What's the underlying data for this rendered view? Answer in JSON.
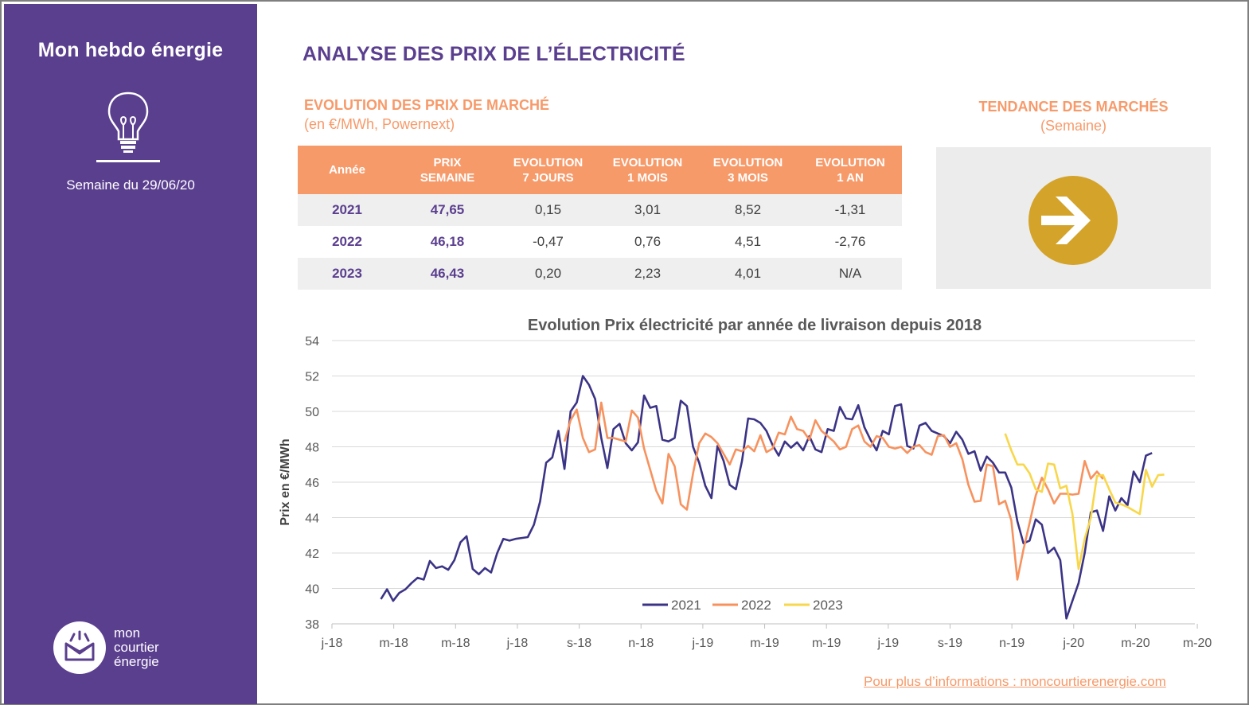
{
  "sidebar": {
    "title": "Mon hebdo énergie",
    "week": "Semaine du 29/06/20",
    "logo_lines": [
      "mon",
      "courtier",
      "énergie"
    ]
  },
  "main": {
    "title": "ANALYSE DES PRIX DE L’ÉLECTRICITÉ",
    "market_title": "EVOLUTION DES PRIX DE MARCHÉ",
    "market_subtitle": "(en €/MWh, Powernext)",
    "trend_title": "TENDANCE DES MARCHÉS",
    "trend_subtitle": "(Semaine)",
    "footer": "Pour plus d’informations : moncourtierenergie.com"
  },
  "table": {
    "headers": [
      [
        "Année"
      ],
      [
        "PRIX",
        "SEMAINE"
      ],
      [
        "EVOLUTION",
        "7 JOURS"
      ],
      [
        "EVOLUTION",
        "1 MOIS"
      ],
      [
        "EVOLUTION",
        "3 MOIS"
      ],
      [
        "EVOLUTION",
        "1 AN"
      ]
    ],
    "rows": [
      [
        "2021",
        "47,65",
        "0,15",
        "3,01",
        "8,52",
        "-1,31"
      ],
      [
        "2022",
        "46,18",
        "-0,47",
        "0,76",
        "4,51",
        "-2,76"
      ],
      [
        "2023",
        "46,43",
        "0,20",
        "2,23",
        "4,01",
        "N/A"
      ]
    ]
  },
  "colors": {
    "purple": "#5b3f8f",
    "orange": "#f79a6a",
    "gold": "#d4a32a",
    "series_2021": "#3b3486",
    "series_2022": "#f7925e",
    "series_2023": "#f8d74a"
  },
  "chart_data": {
    "type": "line",
    "title": "Evolution Prix électricité par année de livraison depuis 2018",
    "ylabel": "Prix en €/MWh",
    "xlabel": "",
    "ylim": [
      38,
      54
    ],
    "yticks": [
      38,
      40,
      42,
      44,
      46,
      48,
      50,
      52,
      54
    ],
    "x_tick_labels": [
      "j-18",
      "m-18",
      "m-18",
      "j-18",
      "s-18",
      "n-18",
      "j-19",
      "m-19",
      "m-19",
      "j-19",
      "s-19",
      "n-19",
      "j-20",
      "m-20",
      "m-20"
    ],
    "grid": true,
    "legend": "bottom",
    "series": [
      {
        "name": "2021",
        "start_week": 8,
        "values": [
          39.4,
          39.95,
          39.3,
          39.75,
          39.95,
          40.3,
          40.6,
          40.5,
          41.55,
          41.15,
          41.25,
          41.05,
          41.6,
          42.6,
          42.95,
          41.1,
          40.8,
          41.15,
          40.9,
          42.0,
          42.8,
          42.7,
          42.8,
          42.85,
          42.9,
          43.6,
          44.9,
          47.1,
          47.4,
          48.9,
          46.75,
          50.0,
          50.5,
          52.0,
          51.5,
          50.7,
          48.5,
          46.8,
          49.0,
          49.3,
          48.2,
          47.8,
          48.25,
          50.9,
          50.2,
          50.3,
          48.4,
          48.3,
          48.5,
          50.6,
          50.3,
          48.0,
          47.1,
          45.8,
          45.1,
          48.05,
          47.2,
          45.85,
          45.6,
          47.2,
          49.6,
          49.55,
          49.35,
          48.9,
          48.1,
          47.5,
          48.3,
          47.95,
          48.25,
          47.8,
          48.6,
          47.85,
          47.7,
          49.0,
          48.9,
          50.25,
          49.6,
          49.55,
          50.35,
          49.1,
          48.4,
          47.8,
          48.9,
          48.7,
          50.3,
          50.4,
          48.05,
          47.9,
          49.2,
          49.35,
          48.9,
          48.75,
          48.6,
          48.2,
          48.85,
          48.4,
          47.6,
          47.75,
          46.65,
          47.45,
          47.1,
          46.55,
          46.55,
          45.7,
          43.8,
          42.55,
          42.7,
          43.9,
          43.6,
          42.0,
          42.3,
          41.6,
          38.3,
          39.3,
          40.3,
          42.0,
          44.3,
          44.4,
          43.25,
          45.2,
          44.4,
          45.1,
          44.7,
          46.6,
          46.0,
          47.5,
          47.65
        ]
      },
      {
        "name": "2022",
        "start_week": 38,
        "values": [
          48.3,
          49.5,
          50.1,
          48.5,
          47.7,
          47.85,
          50.5,
          48.5,
          48.5,
          48.4,
          48.3,
          50.05,
          49.65,
          47.9,
          46.7,
          45.5,
          44.8,
          47.6,
          46.9,
          44.75,
          44.45,
          46.5,
          48.2,
          48.75,
          48.55,
          48.2,
          47.6,
          47.0,
          47.85,
          47.75,
          48.05,
          47.75,
          48.65,
          47.7,
          47.9,
          48.8,
          48.7,
          49.7,
          49.0,
          48.9,
          48.4,
          49.5,
          48.9,
          48.6,
          48.3,
          47.85,
          48.0,
          49.0,
          49.2,
          48.3,
          48.0,
          48.6,
          48.5,
          48.0,
          47.9,
          48.0,
          47.65,
          48.0,
          48.1,
          47.7,
          47.55,
          48.6,
          48.65,
          48.0,
          48.2,
          47.3,
          45.85,
          44.9,
          44.95,
          47.0,
          46.9,
          44.75,
          44.95,
          43.85,
          40.5,
          42.2,
          43.7,
          45.25,
          46.25,
          45.6,
          44.8,
          45.35,
          45.35,
          45.3,
          45.35,
          47.2,
          46.2,
          46.6,
          46.18
        ]
      },
      {
        "name": "2023",
        "start_week": 110,
        "values": [
          48.75,
          47.8,
          47.0,
          47.0,
          46.5,
          45.6,
          45.45,
          47.05,
          47.0,
          45.65,
          45.8,
          44.2,
          41.1,
          42.8,
          44.0,
          46.35,
          46.4,
          45.6,
          44.85,
          44.75,
          44.6,
          44.4,
          44.2,
          46.7,
          45.75,
          46.4,
          46.43
        ]
      }
    ]
  }
}
